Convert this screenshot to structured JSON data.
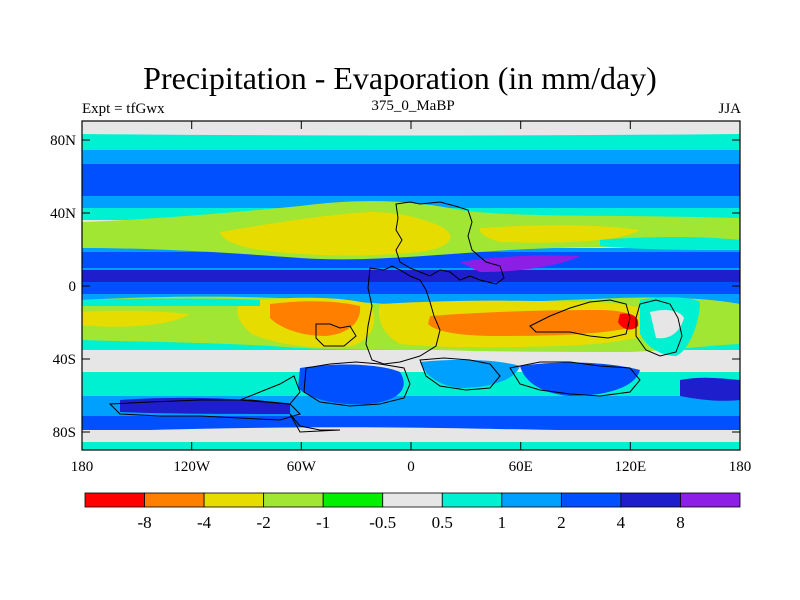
{
  "title": "Precipitation - Evaporation (in mm/day)",
  "subtitle_left": "Expt = tfGwx",
  "subtitle_center": "375_0_MaBP",
  "subtitle_right": "JJA",
  "lat_labels": [
    "80N",
    "40N",
    "0",
    "40S",
    "80S"
  ],
  "lon_labels": [
    "180",
    "120W",
    "60W",
    "0",
    "60E",
    "120E",
    "180"
  ],
  "colorbar": {
    "colors": [
      "#ff0000",
      "#ff8000",
      "#e6dc00",
      "#a0e632",
      "#00f000",
      "#e6e6e6",
      "#00f0d2",
      "#00a0ff",
      "#0050ff",
      "#1e1ecd",
      "#8c1ee6"
    ],
    "labels": [
      "-8",
      "-4",
      "-2",
      "-1",
      "-0.5",
      "0.5",
      "1",
      "2",
      "4",
      "8"
    ]
  }
}
